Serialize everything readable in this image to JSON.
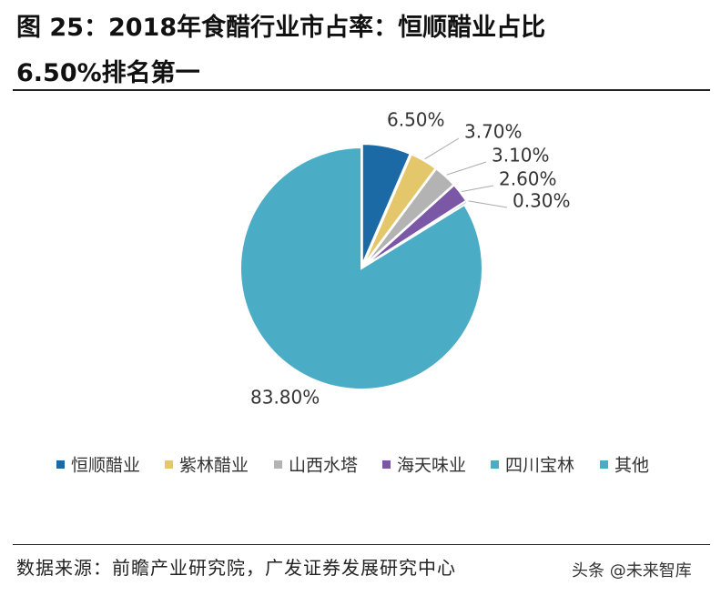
{
  "title": [
    "图 25：2018年食醋行业市占率：恒顺醋业占比",
    "6.50%排名第一"
  ],
  "chart_data": {
    "type": "pie",
    "categories": [
      "恒顺醋业",
      "紫林醋业",
      "山西水塔",
      "海天味业",
      "四川宝林",
      "其他"
    ],
    "values": [
      6.5,
      3.7,
      3.1,
      2.6,
      0.3,
      83.8
    ],
    "value_labels": [
      "6.50%",
      "3.70%",
      "3.10%",
      "2.60%",
      "0.30%",
      "83.80%"
    ],
    "colors": [
      "#1b6aa5",
      "#e5c76b",
      "#b3b3b3",
      "#7b58a6",
      "#4bacc6",
      "#4bacc6"
    ],
    "legend": "bottom"
  },
  "source": "数据来源：前瞻产业研究院，广发证券发展研究中心",
  "watermark": "头条 @未来智库"
}
